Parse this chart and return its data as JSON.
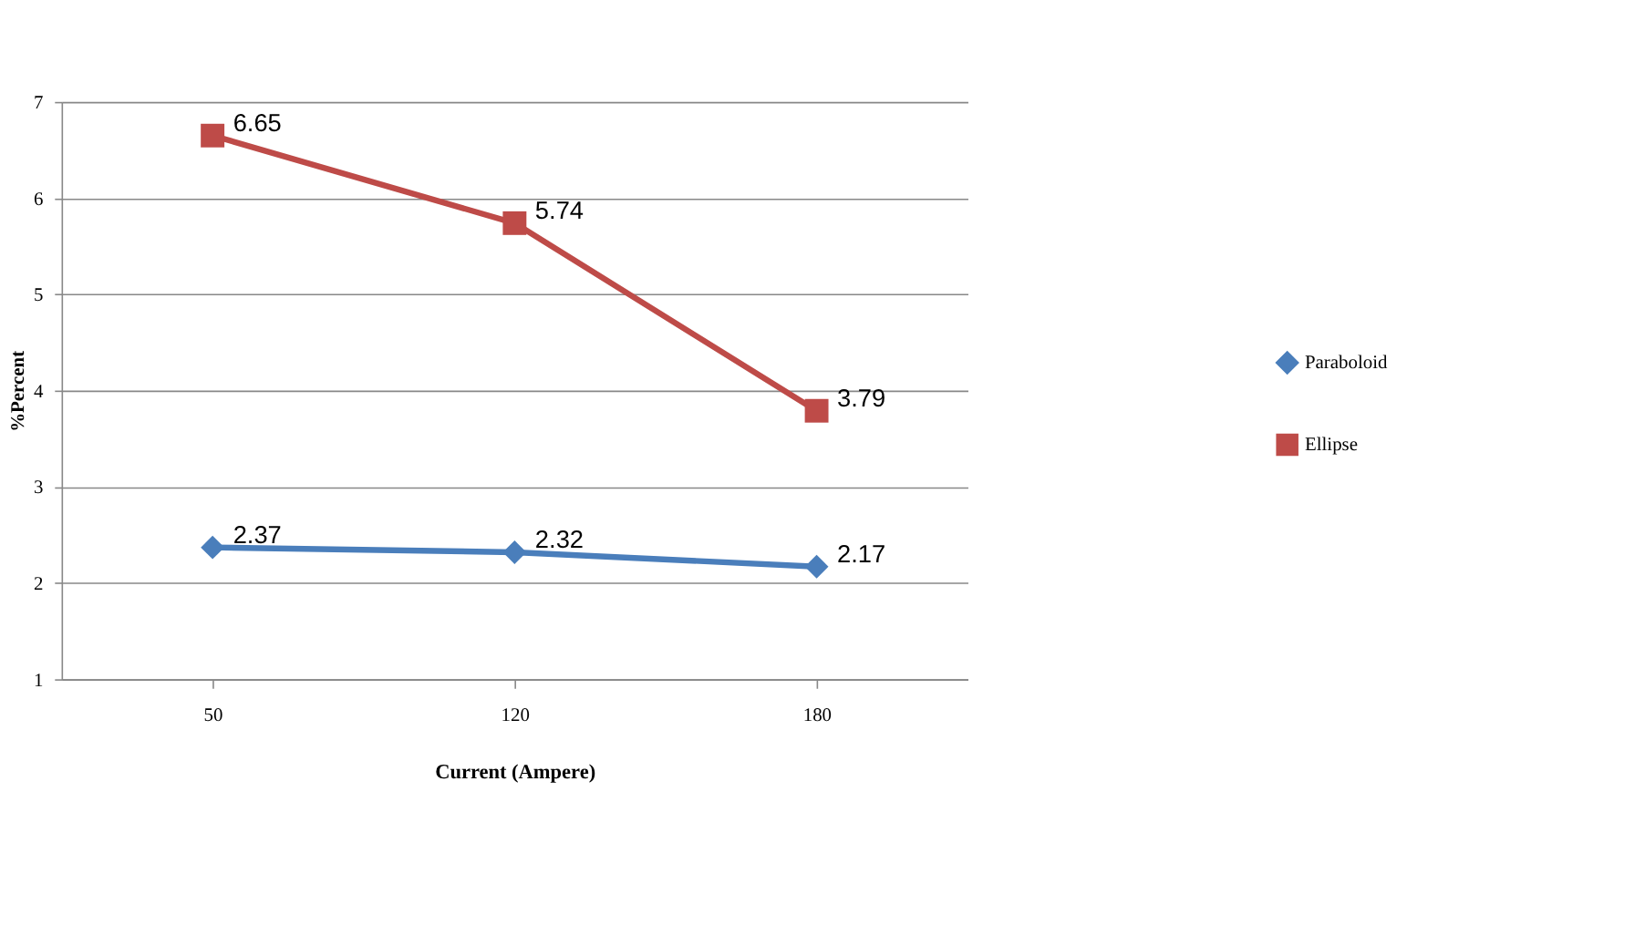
{
  "chart_data": {
    "type": "line",
    "xlabel": "Current (Ampere)",
    "ylabel": "%Percent",
    "categories": [
      "50",
      "120",
      "180"
    ],
    "series": [
      {
        "name": "Paraboloid",
        "color": "#4a7ebb",
        "values": [
          2.37,
          2.32,
          2.17
        ],
        "marker": "diamond"
      },
      {
        "name": "Ellipse",
        "color": "#be4b48",
        "values": [
          6.65,
          5.74,
          3.79
        ],
        "marker": "square"
      }
    ],
    "ylim": [
      1,
      7
    ],
    "yticks": [
      1,
      2,
      3,
      4,
      5,
      6,
      7
    ],
    "grid": "y",
    "legend": "right",
    "data_labels": true,
    "line_style": "solid"
  }
}
